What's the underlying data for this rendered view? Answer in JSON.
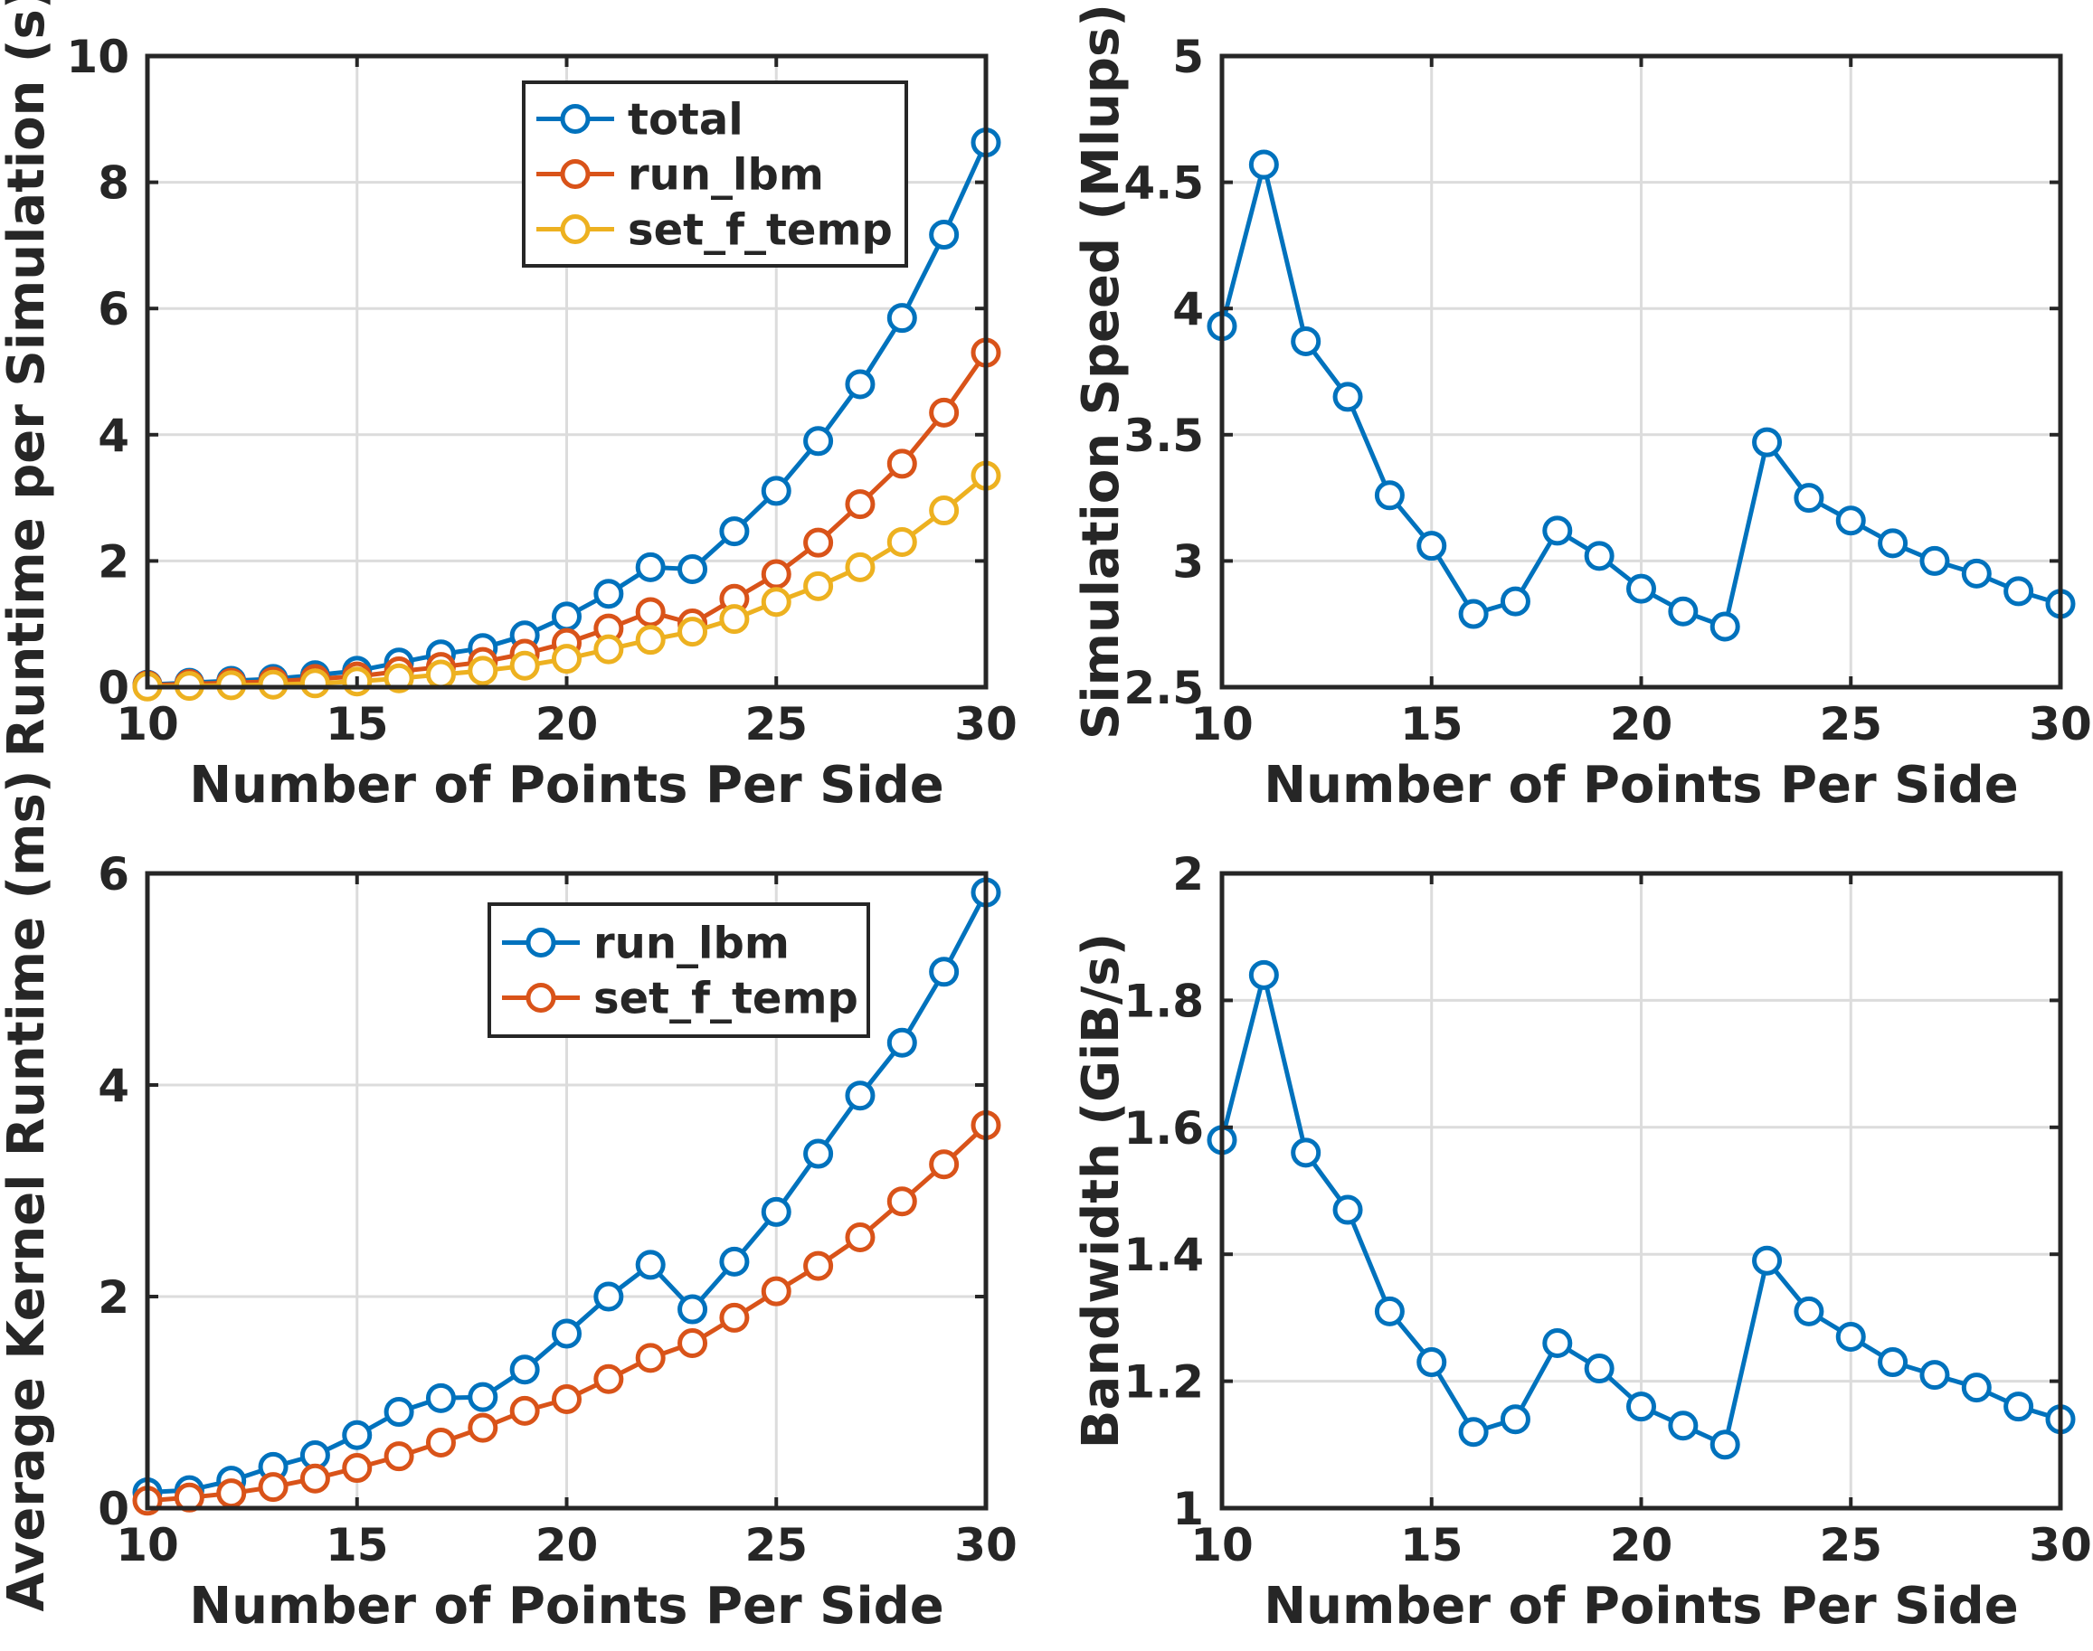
{
  "chart_data": [
    {
      "type": "line",
      "position": "top-left",
      "xlabel": "Number of Points Per Side",
      "ylabel": "Runtime per Simulation (s)",
      "xlim": [
        10,
        30
      ],
      "ylim": [
        0,
        10
      ],
      "xticks": [
        10,
        15,
        20,
        25,
        30
      ],
      "yticks": [
        0,
        2,
        4,
        6,
        8,
        10
      ],
      "grid": true,
      "legend": "top-right",
      "x": [
        10,
        11,
        12,
        13,
        14,
        15,
        16,
        17,
        18,
        19,
        20,
        21,
        22,
        23,
        24,
        25,
        26,
        27,
        28,
        29,
        30
      ],
      "series": [
        {
          "name": "total",
          "color": "#0072BD",
          "values": [
            0.04,
            0.07,
            0.1,
            0.13,
            0.19,
            0.26,
            0.39,
            0.52,
            0.62,
            0.82,
            1.12,
            1.48,
            1.9,
            1.87,
            2.47,
            3.11,
            3.9,
            4.8,
            5.85,
            7.17,
            8.63
          ]
        },
        {
          "name": "run_lbm",
          "color": "#D95319",
          "values": [
            0.03,
            0.05,
            0.07,
            0.09,
            0.13,
            0.17,
            0.25,
            0.32,
            0.4,
            0.53,
            0.7,
            0.93,
            1.19,
            1.01,
            1.4,
            1.79,
            2.29,
            2.9,
            3.54,
            4.35,
            5.3
          ]
        },
        {
          "name": "set_f_temp",
          "color": "#EDB120",
          "values": [
            0.01,
            0.02,
            0.03,
            0.04,
            0.06,
            0.09,
            0.14,
            0.2,
            0.26,
            0.34,
            0.45,
            0.6,
            0.75,
            0.88,
            1.08,
            1.35,
            1.6,
            1.9,
            2.3,
            2.8,
            3.35
          ]
        }
      ]
    },
    {
      "type": "line",
      "position": "top-right",
      "xlabel": "Number of Points Per Side",
      "ylabel": "Simulation Speed (Mlups)",
      "xlim": [
        10,
        30
      ],
      "ylim": [
        2.5,
        5
      ],
      "xticks": [
        10,
        15,
        20,
        25,
        30
      ],
      "yticks": [
        2.5,
        3,
        3.5,
        4,
        4.5,
        5
      ],
      "grid": true,
      "x": [
        10,
        11,
        12,
        13,
        14,
        15,
        16,
        17,
        18,
        19,
        20,
        21,
        22,
        23,
        24,
        25,
        26,
        27,
        28,
        29,
        30
      ],
      "series": [
        {
          "color": "#0072BD",
          "values": [
            3.93,
            4.57,
            3.87,
            3.65,
            3.26,
            3.06,
            2.79,
            2.84,
            3.12,
            3.02,
            2.89,
            2.8,
            2.74,
            3.47,
            3.25,
            3.16,
            3.07,
            3.0,
            2.95,
            2.88,
            2.83
          ]
        }
      ]
    },
    {
      "type": "line",
      "position": "bottom-left",
      "xlabel": "Number of Points Per Side",
      "ylabel": "Average Kernel Runtime (ms)",
      "xlim": [
        10,
        30
      ],
      "ylim": [
        0,
        6
      ],
      "xticks": [
        10,
        15,
        20,
        25,
        30
      ],
      "yticks": [
        0,
        2,
        4,
        6
      ],
      "grid": true,
      "legend": "top-right",
      "x": [
        10,
        11,
        12,
        13,
        14,
        15,
        16,
        17,
        18,
        19,
        20,
        21,
        22,
        23,
        24,
        25,
        26,
        27,
        28,
        29,
        30
      ],
      "series": [
        {
          "name": "run_lbm",
          "color": "#0072BD",
          "values": [
            0.15,
            0.17,
            0.26,
            0.39,
            0.5,
            0.69,
            0.91,
            1.04,
            1.05,
            1.31,
            1.65,
            2.0,
            2.3,
            1.88,
            2.33,
            2.8,
            3.35,
            3.9,
            4.4,
            5.07,
            5.82
          ]
        },
        {
          "name": "set_f_temp",
          "color": "#D95319",
          "values": [
            0.07,
            0.1,
            0.14,
            0.2,
            0.28,
            0.38,
            0.49,
            0.62,
            0.76,
            0.92,
            1.03,
            1.22,
            1.42,
            1.56,
            1.8,
            2.05,
            2.29,
            2.56,
            2.9,
            3.25,
            3.62
          ]
        }
      ]
    },
    {
      "type": "line",
      "position": "bottom-right",
      "xlabel": "Number of Points Per Side",
      "ylabel": "Bandwidth (GiB/s)",
      "xlim": [
        10,
        30
      ],
      "ylim": [
        1,
        2
      ],
      "xticks": [
        10,
        15,
        20,
        25,
        30
      ],
      "yticks": [
        1,
        1.2,
        1.4,
        1.6,
        1.8,
        2
      ],
      "grid": true,
      "x": [
        10,
        11,
        12,
        13,
        14,
        15,
        16,
        17,
        18,
        19,
        20,
        21,
        22,
        23,
        24,
        25,
        26,
        27,
        28,
        29,
        30
      ],
      "series": [
        {
          "color": "#0072BD",
          "values": [
            1.58,
            1.84,
            1.56,
            1.47,
            1.31,
            1.23,
            1.12,
            1.14,
            1.26,
            1.22,
            1.16,
            1.13,
            1.1,
            1.39,
            1.31,
            1.27,
            1.23,
            1.21,
            1.19,
            1.16,
            1.14
          ]
        }
      ]
    }
  ]
}
